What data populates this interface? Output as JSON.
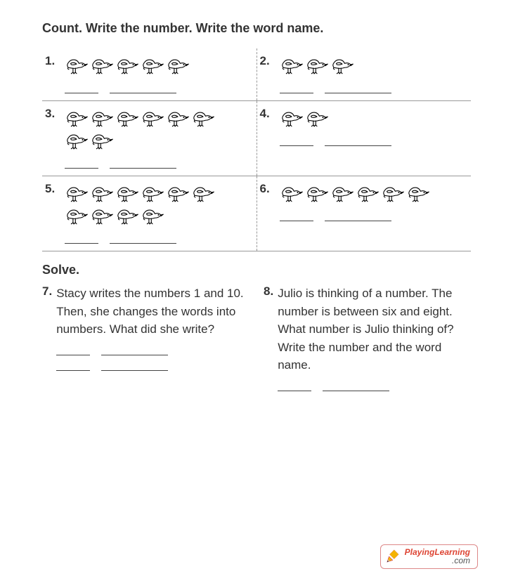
{
  "heading": "Count. Write the number. Write the word name.",
  "problems": [
    {
      "label": "1.",
      "birds": 5
    },
    {
      "label": "2.",
      "birds": 3
    },
    {
      "label": "3.",
      "birds": 8
    },
    {
      "label": "4.",
      "birds": 2
    },
    {
      "label": "5.",
      "birds": 10
    },
    {
      "label": "6.",
      "birds": 6
    }
  ],
  "solve_heading": "Solve.",
  "word_problems": {
    "p7": {
      "label": "7.",
      "text": "Stacy writes the numbers 1 and 10. Then, she changes the words into numbers. What did she write?"
    },
    "p8": {
      "label": "8.",
      "text": "Julio is thinking of a number. The number is between six and eight. What number is Julio thinking of? Write the number and the word name."
    }
  },
  "footer": {
    "brand_top": "PlayingLearning",
    "brand_bot": ".com",
    "pencil_body": "#f4b400",
    "pencil_tip": "#5a3",
    "accent": "#d43"
  },
  "style": {
    "text_color": "#333333",
    "divider_color": "#999999",
    "blank_line_color": "#444444",
    "font_size_heading": 18,
    "font_size_body": 17,
    "bird_stroke": "#000000",
    "bird_fill": "#ffffff"
  }
}
